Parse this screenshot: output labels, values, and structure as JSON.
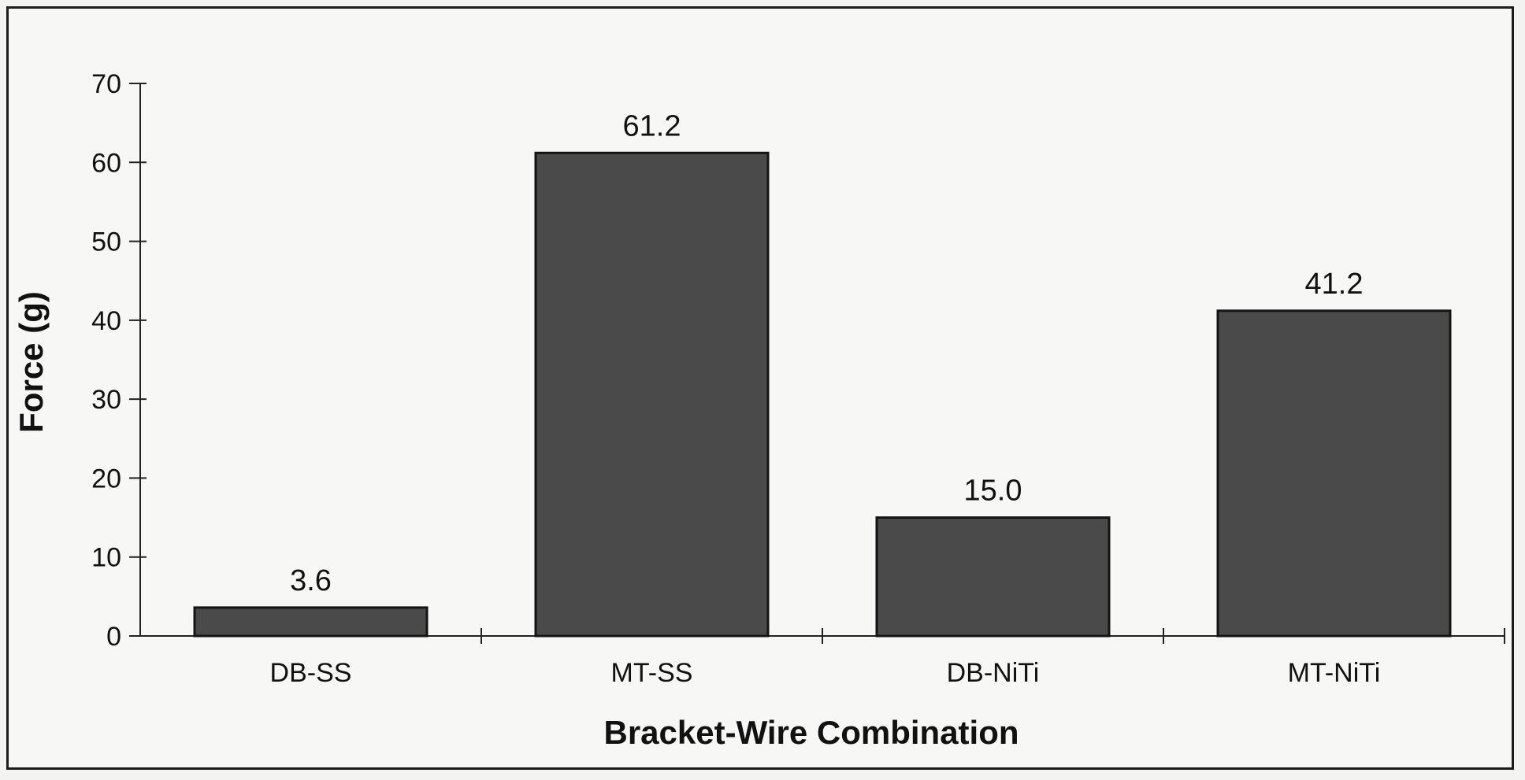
{
  "chart_data": {
    "type": "bar",
    "categories": [
      "DB-SS",
      "MT-SS",
      "DB-NiTi",
      "MT-NiTi"
    ],
    "values": [
      3.6,
      61.2,
      15.0,
      41.2
    ],
    "data_labels": [
      "3.6",
      "61.2",
      "15.0",
      "41.2"
    ],
    "xlabel": "Bracket-Wire Combination",
    "ylabel": "Force (g)",
    "ylim": [
      0,
      70
    ],
    "yticks": [
      0,
      10,
      20,
      30,
      40,
      50,
      60,
      70
    ],
    "grid": false,
    "bar_color": "#4a4a4a",
    "bar_edge_color": "#141414"
  }
}
